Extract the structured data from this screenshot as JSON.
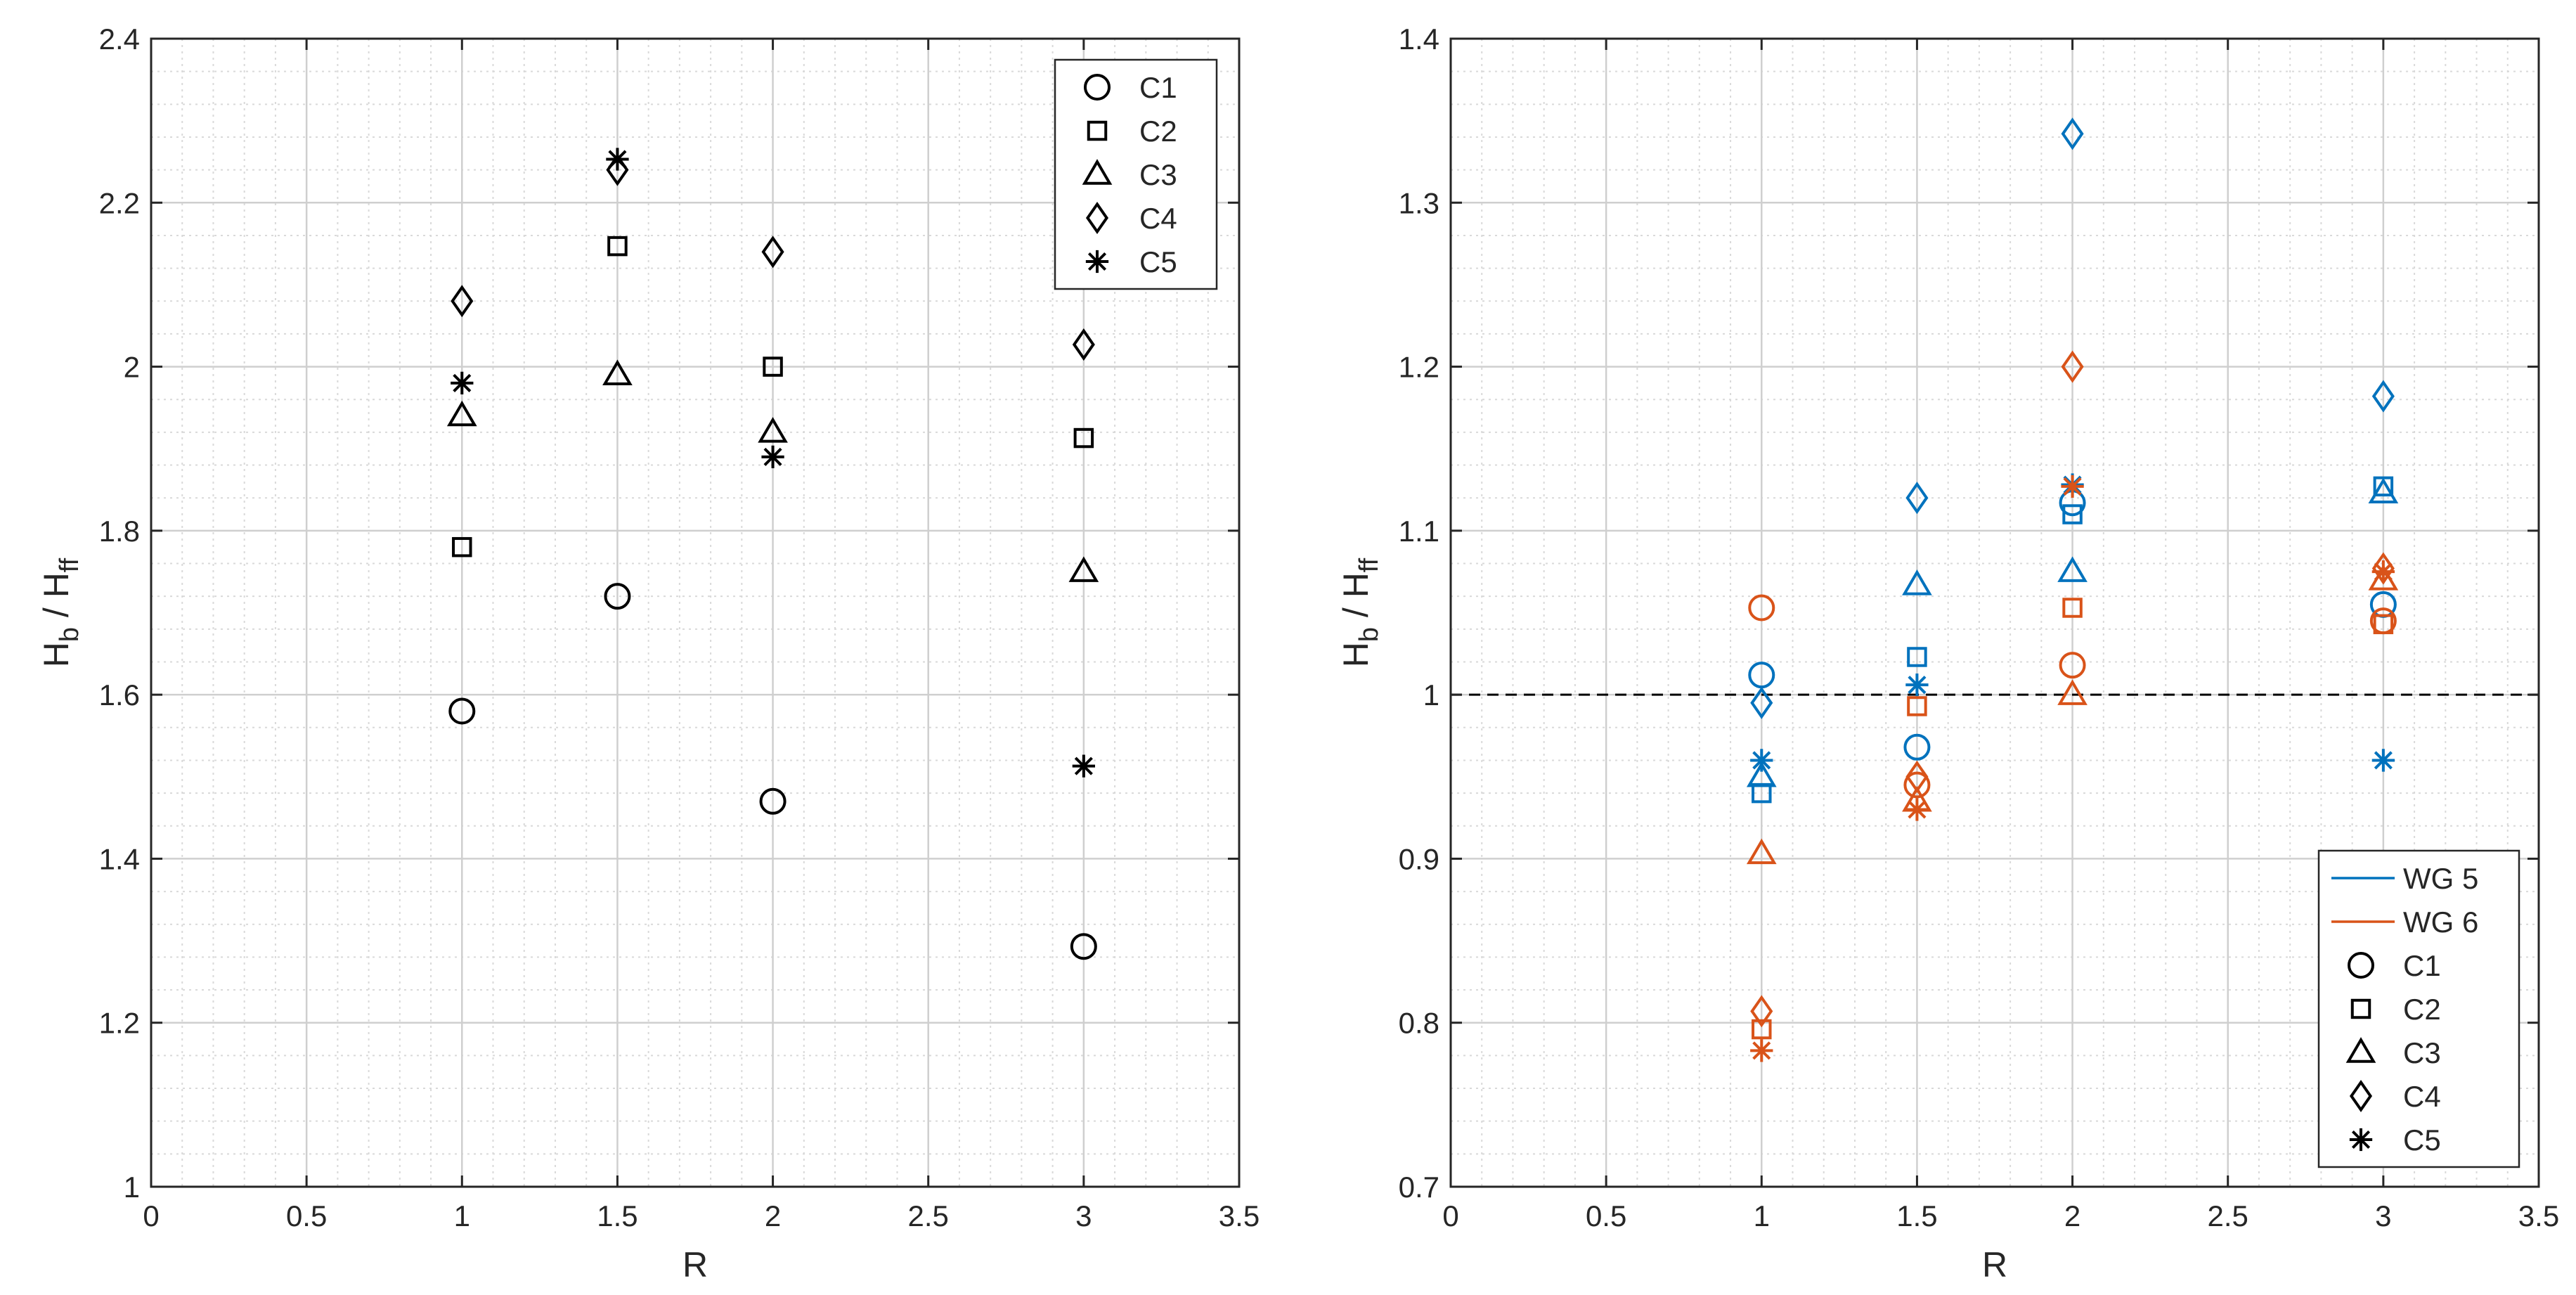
{
  "chart_data": [
    {
      "type": "scatter",
      "title": "",
      "xlabel": "R",
      "ylabel": {
        "main": "H",
        "sub1": "b",
        "sep": "/ H",
        "sub2": "ff"
      },
      "xlim": [
        0,
        3.5
      ],
      "ylim": [
        1,
        2.4
      ],
      "xticks": [
        0,
        0.5,
        1,
        1.5,
        2,
        2.5,
        3,
        3.5
      ],
      "xtick_labels": [
        "0",
        "0.5",
        "1",
        "1.5",
        "2",
        "2.5",
        "3",
        "3.5"
      ],
      "yticks": [
        1,
        1.2,
        1.4,
        1.6,
        1.8,
        2,
        2.2,
        2.4
      ],
      "ytick_labels": [
        "1",
        "1.2",
        "1.4",
        "1.6",
        "1.8",
        "2",
        "2.2",
        "2.4"
      ],
      "grid": true,
      "minor_grid": true,
      "legend_position": "top-right",
      "x": [
        1,
        1.5,
        2,
        3
      ],
      "series": [
        {
          "name": "C1",
          "marker": "circle",
          "color": "#000000",
          "values": [
            1.58,
            1.72,
            1.47,
            1.293
          ]
        },
        {
          "name": "C2",
          "marker": "square",
          "color": "#000000",
          "values": [
            1.78,
            2.147,
            2.0,
            1.913
          ]
        },
        {
          "name": "C3",
          "marker": "triangle",
          "color": "#000000",
          "values": [
            1.94,
            1.99,
            1.92,
            1.75
          ]
        },
        {
          "name": "C4",
          "marker": "diamond",
          "color": "#000000",
          "values": [
            2.08,
            2.24,
            2.14,
            2.027
          ]
        },
        {
          "name": "C5",
          "marker": "asterisk",
          "color": "#000000",
          "values": [
            1.98,
            2.253,
            1.89,
            1.513
          ]
        }
      ],
      "legend": [
        {
          "label": "C1",
          "kind": "marker",
          "marker": "circle",
          "color": "#000000"
        },
        {
          "label": "C2",
          "kind": "marker",
          "marker": "square",
          "color": "#000000"
        },
        {
          "label": "C3",
          "kind": "marker",
          "marker": "triangle",
          "color": "#000000"
        },
        {
          "label": "C4",
          "kind": "marker",
          "marker": "diamond",
          "color": "#000000"
        },
        {
          "label": "C5",
          "kind": "marker",
          "marker": "asterisk",
          "color": "#000000"
        }
      ]
    },
    {
      "type": "scatter",
      "title": "",
      "xlabel": "R",
      "ylabel": {
        "main": "H",
        "sub1": "b",
        "sep": "/ H",
        "sub2": "ff"
      },
      "xlim": [
        0,
        3.5
      ],
      "ylim": [
        0.7,
        1.4
      ],
      "xticks": [
        0,
        0.5,
        1,
        1.5,
        2,
        2.5,
        3,
        3.5
      ],
      "xtick_labels": [
        "0",
        "0.5",
        "1",
        "1.5",
        "2",
        "2.5",
        "3",
        "3.5"
      ],
      "yticks": [
        0.7,
        0.8,
        0.9,
        1.0,
        1.1,
        1.2,
        1.3,
        1.4
      ],
      "ytick_labels": [
        "0.7",
        "0.8",
        "0.9",
        "1",
        "1.1",
        "1.2",
        "1.3",
        "1.4"
      ],
      "grid": true,
      "minor_grid": true,
      "reference_line": {
        "y": 1.0,
        "style": "dashed",
        "color": "#000000"
      },
      "legend_position": "bottom-right",
      "x": [
        1,
        1.5,
        2,
        3
      ],
      "series": [
        {
          "name": "WG 5 C1",
          "group": "WG 5",
          "marker": "circle",
          "color": "#0072BD",
          "values": [
            1.012,
            0.968,
            1.117,
            1.055
          ]
        },
        {
          "name": "WG 5 C2",
          "group": "WG 5",
          "marker": "square",
          "color": "#0072BD",
          "values": [
            0.94,
            1.023,
            1.11,
            1.127
          ]
        },
        {
          "name": "WG 5 C3",
          "group": "WG 5",
          "marker": "triangle",
          "color": "#0072BD",
          "values": [
            0.95,
            1.067,
            1.075,
            1.123
          ]
        },
        {
          "name": "WG 5 C4",
          "group": "WG 5",
          "marker": "diamond",
          "color": "#0072BD",
          "values": [
            0.995,
            1.12,
            1.342,
            1.182
          ]
        },
        {
          "name": "WG 5 C5",
          "group": "WG 5",
          "marker": "asterisk",
          "color": "#0072BD",
          "values": [
            0.96,
            1.006,
            1.128,
            0.96
          ]
        },
        {
          "name": "WG 6 C1",
          "group": "WG 6",
          "marker": "circle",
          "color": "#D95319",
          "values": [
            1.053,
            0.945,
            1.018,
            1.045
          ]
        },
        {
          "name": "WG 6 C2",
          "group": "WG 6",
          "marker": "square",
          "color": "#D95319",
          "values": [
            0.796,
            0.993,
            1.053,
            1.043
          ]
        },
        {
          "name": "WG 6 C3",
          "group": "WG 6",
          "marker": "triangle",
          "color": "#D95319",
          "values": [
            0.903,
            0.935,
            1.0,
            1.07
          ]
        },
        {
          "name": "WG 6 C4",
          "group": "WG 6",
          "marker": "diamond",
          "color": "#D95319",
          "values": [
            0.807,
            0.95,
            1.2,
            1.077
          ]
        },
        {
          "name": "WG 6 C5",
          "group": "WG 6",
          "marker": "asterisk",
          "color": "#D95319",
          "values": [
            0.783,
            0.93,
            1.127,
            1.075
          ]
        }
      ],
      "legend": [
        {
          "label": "WG 5",
          "kind": "line",
          "color": "#0072BD"
        },
        {
          "label": "WG 6",
          "kind": "line",
          "color": "#D95319"
        },
        {
          "label": "C1",
          "kind": "marker",
          "marker": "circle",
          "color": "#000000"
        },
        {
          "label": "C2",
          "kind": "marker",
          "marker": "square",
          "color": "#000000"
        },
        {
          "label": "C3",
          "kind": "marker",
          "marker": "triangle",
          "color": "#000000"
        },
        {
          "label": "C4",
          "kind": "marker",
          "marker": "diamond",
          "color": "#000000"
        },
        {
          "label": "C5",
          "kind": "marker",
          "marker": "asterisk",
          "color": "#000000"
        }
      ]
    }
  ]
}
